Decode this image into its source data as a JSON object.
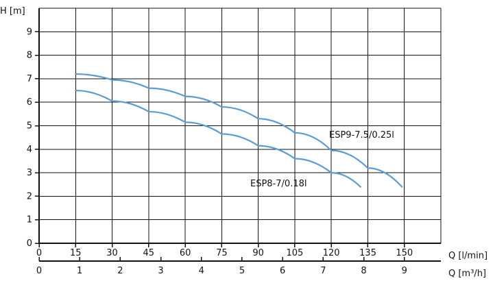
{
  "chart_data": {
    "type": "line",
    "y_axis_label": "H [m]",
    "x_axis_label": "Q [l/min]",
    "x2_axis_label": "Q [m³/h]",
    "ylim": [
      0,
      10
    ],
    "xlim": [
      0,
      165
    ],
    "y_ticks": [
      0,
      1,
      2,
      3,
      4,
      5,
      6,
      7,
      8,
      9
    ],
    "x_ticks": [
      0,
      15,
      30,
      45,
      60,
      75,
      90,
      105,
      120,
      135,
      150
    ],
    "x2_ticks": [
      0,
      1,
      2,
      3,
      4,
      5,
      6,
      7,
      8,
      9
    ],
    "grid": true,
    "curve_color": "#5B9BD5",
    "series": [
      {
        "name": "ESP9-7.5/0.25l",
        "x": [
          15,
          30,
          45,
          60,
          75,
          90,
          105,
          120,
          135,
          149
        ],
        "y": [
          7.2,
          6.95,
          6.6,
          6.25,
          5.8,
          5.3,
          4.7,
          3.95,
          3.2,
          2.4
        ]
      },
      {
        "name": "ESP8-7/0.18l",
        "x": [
          15,
          30,
          45,
          60,
          75,
          90,
          105,
          120,
          132
        ],
        "y": [
          6.5,
          6.05,
          5.6,
          5.15,
          4.65,
          4.15,
          3.6,
          3.0,
          2.4
        ]
      }
    ]
  }
}
